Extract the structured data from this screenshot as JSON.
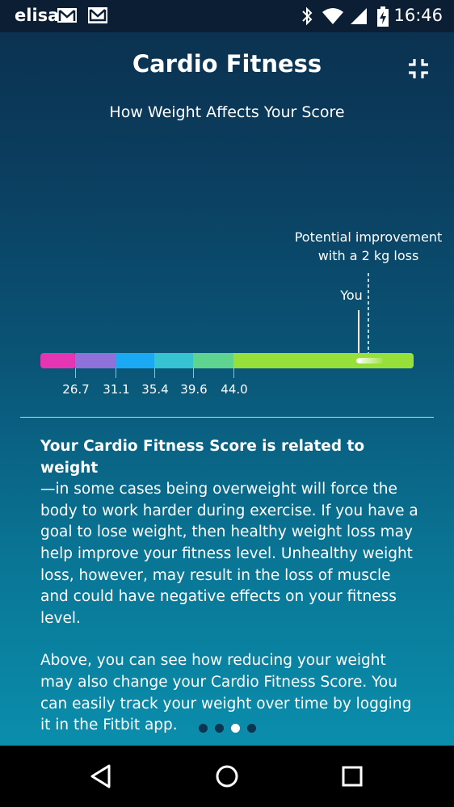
{
  "status_bar": {
    "carrier": "elisa",
    "time": "16:46",
    "icons": [
      "gmail-icon",
      "inbox-icon",
      "bluetooth-icon",
      "wifi-icon",
      "cell-signal-icon",
      "battery-charging-icon"
    ]
  },
  "header": {
    "title": "Cardio Fitness",
    "collapse_icon": "collapse-icon"
  },
  "chart": {
    "subtitle": "How Weight Affects Your Score"
  },
  "chart_data": {
    "type": "bar",
    "title": "How Weight Affects Your Score",
    "scale_ticks": [
      "26.7",
      "31.1",
      "35.4",
      "39.6",
      "44.0"
    ],
    "segments": [
      {
        "color": "#e535b4"
      },
      {
        "color": "#8e72d9"
      },
      {
        "color": "#1aa9f3"
      },
      {
        "color": "#37c4d2"
      },
      {
        "color": "#5fd390"
      },
      {
        "color": "#97e03a"
      }
    ],
    "markers": [
      {
        "label": "You",
        "style": "solid"
      },
      {
        "label": "Potential improvement\nwith a 2 kg loss",
        "style": "dashed"
      }
    ],
    "improvement_label_line1": "Potential improvement",
    "improvement_label_line2": "with a 2 kg loss",
    "you_label": "You"
  },
  "content": {
    "para1_bold": "Your Cardio Fitness Score is related to weight",
    "para1_rest": "—in some cases being overweight will force the body to work harder during exercise. If you have a goal to lose weight, then healthy weight loss may help improve your fitness level. Unhealthy weight loss, however, may result in the loss of muscle and could have negative effects on your fitness level.",
    "para2": "Above, you can see how reducing your weight may also change your Cardio Fitness Score. You can easily track your weight over time by logging it in the Fitbit app."
  },
  "pager": {
    "count": 4,
    "active_index": 2
  },
  "nav": {
    "back_icon": "back-icon",
    "home_icon": "home-icon",
    "recents_icon": "recents-icon"
  }
}
